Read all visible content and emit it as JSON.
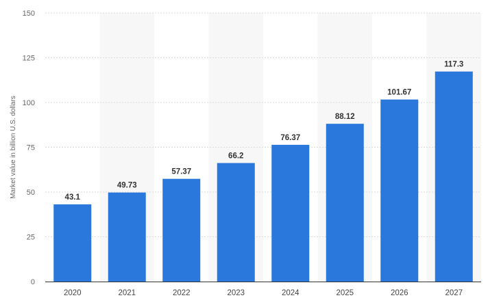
{
  "chart_data": {
    "type": "bar",
    "categories": [
      "2020",
      "2021",
      "2022",
      "2023",
      "2024",
      "2025",
      "2026",
      "2027"
    ],
    "values": [
      43.1,
      49.73,
      57.37,
      66.2,
      76.37,
      88.12,
      101.67,
      117.3
    ],
    "value_labels": [
      "43.1",
      "49.73",
      "57.37",
      "66.2",
      "76.37",
      "88.12",
      "101.67",
      "117.3"
    ],
    "title": "",
    "xlabel": "",
    "ylabel": "Market value in billion U.S. dollars",
    "ylim": [
      0,
      150
    ],
    "yticks": [
      "0",
      "25",
      "50",
      "75",
      "100",
      "125",
      "150"
    ],
    "ytick_values": [
      0,
      25,
      50,
      75,
      100,
      125,
      150
    ],
    "grid": true,
    "legend": "none",
    "colors": {
      "bar": "#2a78dc",
      "band": "#f7f7f7",
      "grid": "#d9d9d9"
    }
  }
}
